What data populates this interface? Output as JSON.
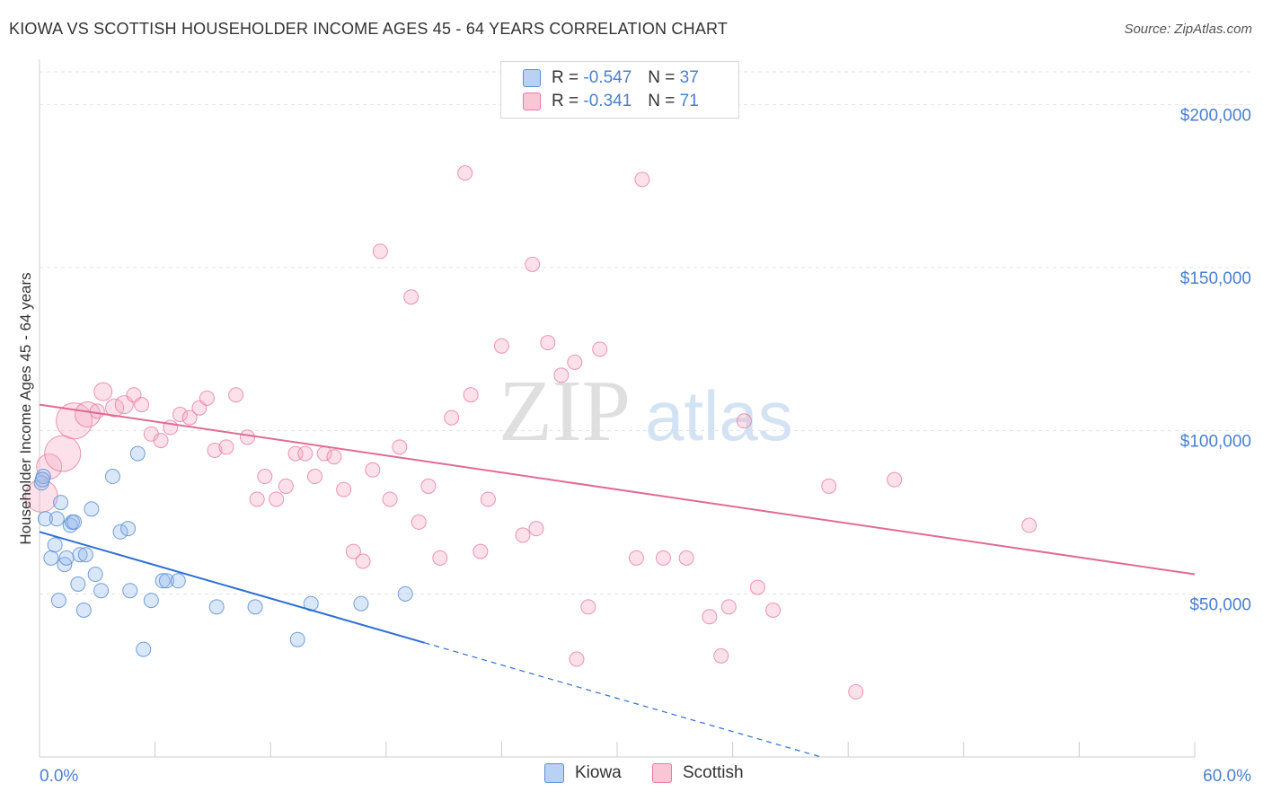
{
  "header": {
    "title": "KIOWA VS SCOTTISH HOUSEHOLDER INCOME AGES 45 - 64 YEARS CORRELATION CHART",
    "source": "Source: ZipAtlas.com"
  },
  "legend_top": {
    "rows": [
      {
        "r_label": "R =",
        "r_value": "-0.547",
        "n_label": "N =",
        "n_value": "37"
      },
      {
        "r_label": "R =",
        "r_value": "-0.341",
        "n_label": "N =",
        "n_value": "71"
      }
    ]
  },
  "watermark": {
    "part1": "ZIP",
    "part2": "atlas"
  },
  "chart_data": {
    "type": "scatter",
    "title": "KIOWA VS SCOTTISH HOUSEHOLDER INCOME AGES 45 - 64 YEARS CORRELATION CHART",
    "xlabel": "",
    "ylabel": "Householder Income Ages 45 - 64 years",
    "xlim": [
      0,
      60
    ],
    "ylim": [
      0,
      210000
    ],
    "x_tick_labels": [
      "0.0%",
      "60.0%"
    ],
    "y_ticks": [
      50000,
      100000,
      150000,
      200000
    ],
    "y_tick_labels": [
      "$50,000",
      "$100,000",
      "$150,000",
      "$200,000"
    ],
    "grid": true,
    "legend_position": "bottom",
    "colors": {
      "kiowa": "#5b8fd6",
      "kiowa_fill": "rgba(150,185,235,0.35)",
      "scottish": "#e87ba0",
      "scottish_fill": "rgba(245,170,195,0.35)",
      "kiowa_line": "#2f6fd1",
      "scottish_line": "#e06b95",
      "axis_text": "#4a7fd0"
    },
    "series": [
      {
        "name": "Kiowa",
        "trend": {
          "x0": 0,
          "y0": 69000,
          "x1": 20,
          "y1": 35000,
          "dash_to_x": 40.5
        },
        "points": [
          [
            0.1,
            84000
          ],
          [
            0.2,
            86000
          ],
          [
            0.3,
            73000
          ],
          [
            0.6,
            61000
          ],
          [
            0.8,
            65000
          ],
          [
            0.9,
            73000
          ],
          [
            1.0,
            48000
          ],
          [
            1.1,
            78000
          ],
          [
            1.3,
            59000
          ],
          [
            1.4,
            61000
          ],
          [
            1.6,
            71000
          ],
          [
            1.7,
            72000
          ],
          [
            1.8,
            72000
          ],
          [
            2.0,
            53000
          ],
          [
            2.1,
            62000
          ],
          [
            2.3,
            45000
          ],
          [
            2.4,
            62000
          ],
          [
            2.7,
            76000
          ],
          [
            2.9,
            56000
          ],
          [
            3.2,
            51000
          ],
          [
            3.8,
            86000
          ],
          [
            4.2,
            69000
          ],
          [
            4.6,
            70000
          ],
          [
            4.7,
            51000
          ],
          [
            5.1,
            93000
          ],
          [
            5.4,
            33000
          ],
          [
            5.8,
            48000
          ],
          [
            6.4,
            54000
          ],
          [
            6.6,
            54000
          ],
          [
            7.2,
            54000
          ],
          [
            9.2,
            46000
          ],
          [
            11.2,
            46000
          ],
          [
            13.4,
            36000
          ],
          [
            14.1,
            47000
          ],
          [
            16.7,
            47000
          ],
          [
            19.0,
            50000
          ],
          [
            0.15,
            85000
          ]
        ]
      },
      {
        "name": "Scottish",
        "trend": {
          "x0": 0,
          "y0": 108000,
          "x1": 60,
          "y1": 56000
        },
        "points": [
          [
            0.1,
            80000,
            18
          ],
          [
            0.5,
            89000,
            14
          ],
          [
            1.2,
            93000,
            20
          ],
          [
            1.8,
            103000,
            20
          ],
          [
            2.5,
            105000,
            14
          ],
          [
            3.3,
            112000,
            10
          ],
          [
            3.9,
            107000,
            10
          ],
          [
            4.4,
            108000,
            10
          ],
          [
            4.9,
            111000,
            8
          ],
          [
            5.3,
            108000,
            8
          ],
          [
            5.8,
            99000,
            8
          ],
          [
            6.3,
            97000,
            8
          ],
          [
            6.8,
            101000,
            8
          ],
          [
            7.3,
            105000,
            8
          ],
          [
            7.8,
            104000,
            8
          ],
          [
            8.3,
            107000,
            8
          ],
          [
            8.7,
            110000,
            8
          ],
          [
            9.1,
            94000,
            8
          ],
          [
            9.7,
            95000,
            8
          ],
          [
            10.2,
            111000,
            8
          ],
          [
            10.8,
            98000,
            8
          ],
          [
            11.3,
            79000,
            8
          ],
          [
            11.7,
            86000,
            8
          ],
          [
            12.3,
            79000,
            8
          ],
          [
            12.8,
            83000,
            8
          ],
          [
            13.3,
            93000,
            8
          ],
          [
            13.8,
            93000,
            8
          ],
          [
            14.3,
            86000,
            8
          ],
          [
            14.8,
            93000,
            8
          ],
          [
            15.3,
            92000,
            8
          ],
          [
            15.8,
            82000,
            8
          ],
          [
            16.3,
            63000,
            8
          ],
          [
            16.8,
            60000,
            8
          ],
          [
            17.3,
            88000,
            8
          ],
          [
            17.7,
            155000,
            8
          ],
          [
            18.2,
            79000,
            8
          ],
          [
            18.7,
            95000,
            8
          ],
          [
            19.3,
            141000,
            8
          ],
          [
            19.7,
            72000,
            8
          ],
          [
            20.2,
            83000,
            8
          ],
          [
            20.8,
            61000,
            8
          ],
          [
            21.4,
            104000,
            8
          ],
          [
            22.1,
            179000,
            8
          ],
          [
            22.4,
            111000,
            8
          ],
          [
            22.9,
            63000,
            8
          ],
          [
            23.3,
            79000,
            8
          ],
          [
            24.0,
            126000,
            8
          ],
          [
            25.1,
            68000,
            8
          ],
          [
            25.6,
            151000,
            8
          ],
          [
            25.8,
            70000,
            8
          ],
          [
            26.4,
            127000,
            8
          ],
          [
            27.1,
            117000,
            8
          ],
          [
            27.8,
            121000,
            8
          ],
          [
            27.9,
            30000,
            8
          ],
          [
            28.5,
            46000,
            8
          ],
          [
            29.1,
            125000,
            8
          ],
          [
            31.0,
            61000,
            8
          ],
          [
            31.3,
            177000,
            8
          ],
          [
            32.4,
            61000,
            8
          ],
          [
            33.6,
            61000,
            8
          ],
          [
            34.8,
            43000,
            8
          ],
          [
            35.4,
            31000,
            8
          ],
          [
            35.8,
            46000,
            8
          ],
          [
            36.6,
            103000,
            8
          ],
          [
            37.3,
            52000,
            8
          ],
          [
            38.1,
            45000,
            8
          ],
          [
            41.0,
            83000,
            8
          ],
          [
            42.4,
            20000,
            8
          ],
          [
            44.4,
            85000,
            8
          ],
          [
            51.4,
            71000,
            8
          ],
          [
            3.0,
            106000,
            8
          ]
        ]
      }
    ]
  }
}
